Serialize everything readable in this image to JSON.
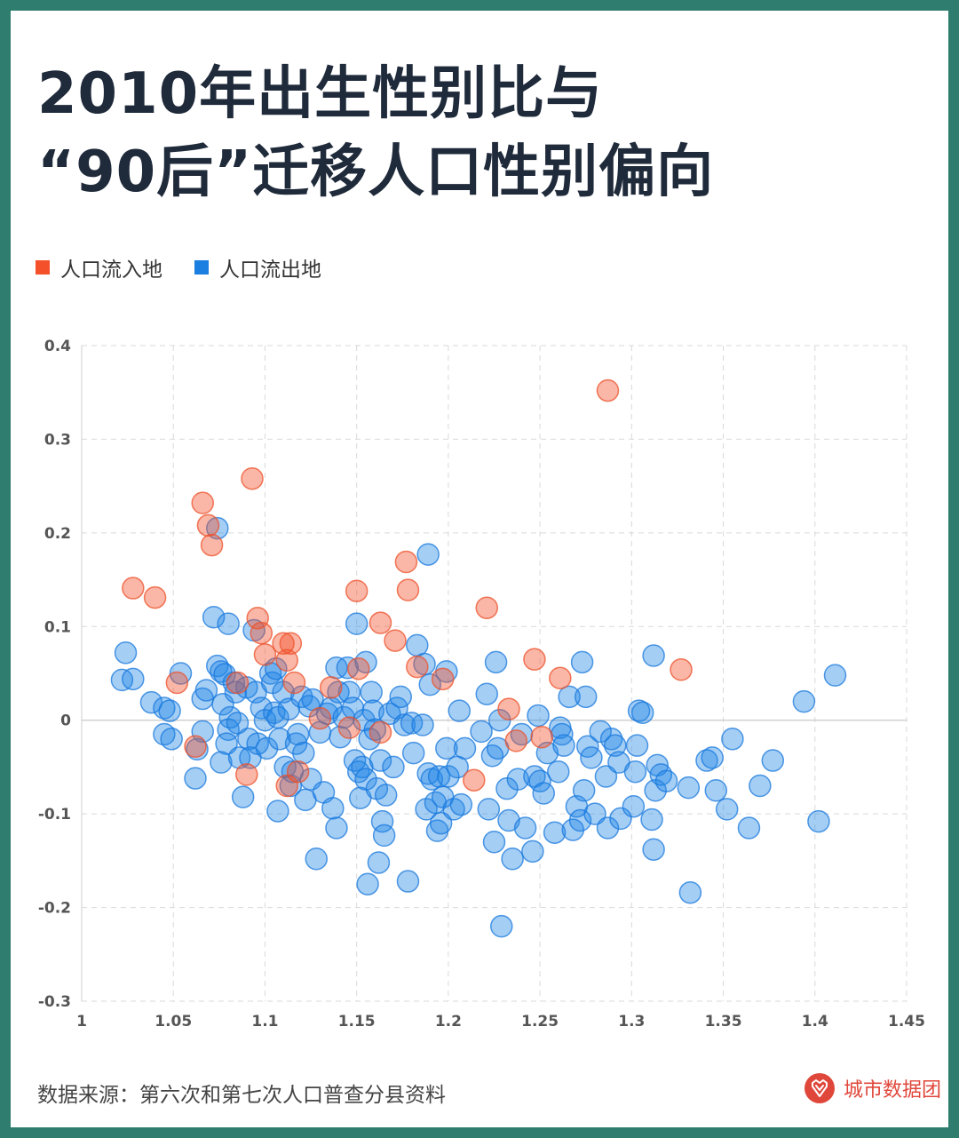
{
  "title": {
    "line1": "2010年出生性别比与",
    "line2": "“90后”迁移人口性别偏向"
  },
  "legend": {
    "inflow_label": "人口流入地",
    "outflow_label": "人口流出地"
  },
  "colors": {
    "inflow": "#f4502a",
    "outflow": "#1a7fe0",
    "frame": "#2f7d6e"
  },
  "footer": {
    "source": "数据来源：第六次和第七次人口普查分县资料",
    "brand": "城市数据团",
    "brand_icon": "city-data-logo-icon"
  },
  "chart_data": {
    "type": "scatter",
    "xlim": [
      1,
      1.45
    ],
    "ylim": [
      -0.3,
      0.4
    ],
    "x_ticks": [
      1,
      1.05,
      1.1,
      1.15,
      1.2,
      1.25,
      1.3,
      1.35,
      1.4,
      1.45
    ],
    "x_tick_labels": [
      "1",
      "1.05",
      "1.1",
      "1.15",
      "1.2",
      "1.25",
      "1.3",
      "1.35",
      "1.4",
      "1.45"
    ],
    "y_ticks": [
      0.4,
      0.3,
      0.2,
      0.1,
      0,
      -0.1,
      -0.2,
      -0.3
    ],
    "y_tick_labels": [
      "0.4",
      "0.3",
      "0.2",
      "0.1",
      "0",
      "-0.1",
      "-0.2",
      "-0.3"
    ],
    "grid": true,
    "legend_position": "top-left",
    "series": [
      {
        "name": "人口流入地",
        "color": "#f4502a",
        "points": [
          [
            1.028,
            0.141
          ],
          [
            1.04,
            0.131
          ],
          [
            1.052,
            0.04
          ],
          [
            1.066,
            0.232
          ],
          [
            1.069,
            0.208
          ],
          [
            1.071,
            0.187
          ],
          [
            1.093,
            0.258
          ],
          [
            1.096,
            0.109
          ],
          [
            1.098,
            0.093
          ],
          [
            1.1,
            0.07
          ],
          [
            1.11,
            0.082
          ],
          [
            1.112,
            0.064
          ],
          [
            1.114,
            0.082
          ],
          [
            1.116,
            0.04
          ],
          [
            1.118,
            -0.055
          ],
          [
            1.112,
            -0.07
          ],
          [
            1.09,
            -0.058
          ],
          [
            1.062,
            -0.028
          ],
          [
            1.15,
            0.138
          ],
          [
            1.151,
            0.055
          ],
          [
            1.163,
            0.104
          ],
          [
            1.171,
            0.085
          ],
          [
            1.177,
            0.169
          ],
          [
            1.178,
            0.139
          ],
          [
            1.183,
            0.057
          ],
          [
            1.197,
            0.044
          ],
          [
            1.221,
            0.12
          ],
          [
            1.233,
            0.012
          ],
          [
            1.237,
            -0.022
          ],
          [
            1.247,
            0.065
          ],
          [
            1.251,
            -0.018
          ],
          [
            1.261,
            0.045
          ],
          [
            1.287,
            0.352
          ],
          [
            1.327,
            0.054
          ],
          [
            1.214,
            -0.064
          ],
          [
            1.136,
            0.035
          ],
          [
            1.13,
            0.002
          ],
          [
            1.146,
            -0.008
          ],
          [
            1.163,
            -0.013
          ],
          [
            1.085,
            0.04
          ]
        ]
      },
      {
        "name": "人口流出地",
        "color": "#1a7fe0",
        "points": [
          [
            1.024,
            0.072
          ],
          [
            1.022,
            0.043
          ],
          [
            1.028,
            0.044
          ],
          [
            1.038,
            0.019
          ],
          [
            1.045,
            0.013
          ],
          [
            1.048,
            0.01
          ],
          [
            1.045,
            -0.015
          ],
          [
            1.049,
            -0.02
          ],
          [
            1.054,
            0.05
          ],
          [
            1.063,
            -0.031
          ],
          [
            1.062,
            -0.062
          ],
          [
            1.066,
            0.023
          ],
          [
            1.068,
            0.032
          ],
          [
            1.066,
            -0.012
          ],
          [
            1.072,
            0.11
          ],
          [
            1.074,
            0.058
          ],
          [
            1.074,
            0.205
          ],
          [
            1.076,
            0.052
          ],
          [
            1.078,
            0.049
          ],
          [
            1.077,
            0.017
          ],
          [
            1.08,
            0.103
          ],
          [
            1.081,
            0.003
          ],
          [
            1.08,
            -0.01
          ],
          [
            1.079,
            -0.025
          ],
          [
            1.076,
            -0.045
          ],
          [
            1.083,
            0.04
          ],
          [
            1.084,
            0.03
          ],
          [
            1.085,
            -0.003
          ],
          [
            1.086,
            -0.04
          ],
          [
            1.088,
            -0.082
          ],
          [
            1.09,
            0.035
          ],
          [
            1.091,
            -0.02
          ],
          [
            1.092,
            -0.04
          ],
          [
            1.094,
            0.096
          ],
          [
            1.095,
            0.03
          ],
          [
            1.096,
            -0.025
          ],
          [
            1.098,
            0.013
          ],
          [
            1.1,
            0.0
          ],
          [
            1.101,
            -0.03
          ],
          [
            1.103,
            0.05
          ],
          [
            1.104,
            0.04
          ],
          [
            1.105,
            0.008
          ],
          [
            1.106,
            0.055
          ],
          [
            1.107,
            0.003
          ],
          [
            1.107,
            -0.097
          ],
          [
            1.108,
            -0.02
          ],
          [
            1.11,
            0.03
          ],
          [
            1.111,
            -0.05
          ],
          [
            1.113,
            0.012
          ],
          [
            1.114,
            -0.07
          ],
          [
            1.115,
            -0.055
          ],
          [
            1.117,
            -0.025
          ],
          [
            1.118,
            -0.015
          ],
          [
            1.12,
            0.025
          ],
          [
            1.121,
            -0.035
          ],
          [
            1.122,
            -0.085
          ],
          [
            1.124,
            0.015
          ],
          [
            1.125,
            -0.063
          ],
          [
            1.126,
            0.022
          ],
          [
            1.128,
            -0.148
          ],
          [
            1.13,
            -0.013
          ],
          [
            1.132,
            -0.077
          ],
          [
            1.134,
            0.007
          ],
          [
            1.136,
            0.013
          ],
          [
            1.137,
            -0.094
          ],
          [
            1.139,
            0.056
          ],
          [
            1.139,
            -0.115
          ],
          [
            1.14,
            0.03
          ],
          [
            1.141,
            -0.018
          ],
          [
            1.143,
            0.003
          ],
          [
            1.145,
            0.056
          ],
          [
            1.146,
            0.03
          ],
          [
            1.148,
            0.013
          ],
          [
            1.149,
            -0.043
          ],
          [
            1.15,
            0.103
          ],
          [
            1.151,
            -0.055
          ],
          [
            1.152,
            -0.083
          ],
          [
            1.153,
            -0.05
          ],
          [
            1.154,
            0.0
          ],
          [
            1.155,
            -0.063
          ],
          [
            1.155,
            0.062
          ],
          [
            1.156,
            -0.175
          ],
          [
            1.157,
            -0.02
          ],
          [
            1.158,
            0.03
          ],
          [
            1.159,
            0.01
          ],
          [
            1.16,
            -0.01
          ],
          [
            1.161,
            -0.073
          ],
          [
            1.162,
            -0.152
          ],
          [
            1.163,
            -0.043
          ],
          [
            1.164,
            -0.108
          ],
          [
            1.165,
            -0.123
          ],
          [
            1.166,
            -0.08
          ],
          [
            1.168,
            0.007
          ],
          [
            1.17,
            -0.05
          ],
          [
            1.172,
            0.013
          ],
          [
            1.174,
            0.025
          ],
          [
            1.176,
            -0.005
          ],
          [
            1.178,
            -0.172
          ],
          [
            1.18,
            -0.003
          ],
          [
            1.181,
            -0.035
          ],
          [
            1.183,
            0.08
          ],
          [
            1.186,
            -0.005
          ],
          [
            1.187,
            0.06
          ],
          [
            1.188,
            -0.095
          ],
          [
            1.189,
            0.177
          ],
          [
            1.189,
            -0.057
          ],
          [
            1.19,
            0.038
          ],
          [
            1.191,
            -0.063
          ],
          [
            1.193,
            -0.088
          ],
          [
            1.194,
            -0.118
          ],
          [
            1.195,
            -0.06
          ],
          [
            1.196,
            -0.11
          ],
          [
            1.197,
            -0.082
          ],
          [
            1.199,
            -0.03
          ],
          [
            1.199,
            0.052
          ],
          [
            1.2,
            -0.06
          ],
          [
            1.203,
            -0.095
          ],
          [
            1.205,
            -0.05
          ],
          [
            1.206,
            0.01
          ],
          [
            1.207,
            -0.09
          ],
          [
            1.209,
            -0.03
          ],
          [
            1.218,
            -0.012
          ],
          [
            1.221,
            0.028
          ],
          [
            1.222,
            -0.095
          ],
          [
            1.224,
            -0.038
          ],
          [
            1.225,
            -0.13
          ],
          [
            1.226,
            0.062
          ],
          [
            1.227,
            -0.03
          ],
          [
            1.228,
            0.0
          ],
          [
            1.229,
            -0.22
          ],
          [
            1.232,
            -0.073
          ],
          [
            1.233,
            -0.107
          ],
          [
            1.235,
            -0.148
          ],
          [
            1.238,
            -0.063
          ],
          [
            1.24,
            -0.015
          ],
          [
            1.242,
            -0.115
          ],
          [
            1.246,
            -0.14
          ],
          [
            1.247,
            -0.06
          ],
          [
            1.249,
            0.005
          ],
          [
            1.25,
            -0.065
          ],
          [
            1.252,
            -0.078
          ],
          [
            1.254,
            -0.035
          ],
          [
            1.258,
            -0.12
          ],
          [
            1.26,
            -0.055
          ],
          [
            1.261,
            -0.008
          ],
          [
            1.262,
            -0.015
          ],
          [
            1.263,
            -0.027
          ],
          [
            1.266,
            0.025
          ],
          [
            1.268,
            -0.117
          ],
          [
            1.27,
            -0.092
          ],
          [
            1.272,
            -0.107
          ],
          [
            1.273,
            0.062
          ],
          [
            1.274,
            -0.075
          ],
          [
            1.275,
            0.025
          ],
          [
            1.276,
            -0.028
          ],
          [
            1.278,
            -0.04
          ],
          [
            1.28,
            -0.1
          ],
          [
            1.283,
            -0.012
          ],
          [
            1.286,
            -0.06
          ],
          [
            1.287,
            -0.115
          ],
          [
            1.289,
            -0.02
          ],
          [
            1.291,
            -0.027
          ],
          [
            1.293,
            -0.045
          ],
          [
            1.294,
            -0.105
          ],
          [
            1.301,
            -0.092
          ],
          [
            1.302,
            -0.055
          ],
          [
            1.303,
            -0.027
          ],
          [
            1.304,
            0.01
          ],
          [
            1.306,
            0.008
          ],
          [
            1.311,
            -0.106
          ],
          [
            1.312,
            -0.138
          ],
          [
            1.312,
            0.069
          ],
          [
            1.313,
            -0.075
          ],
          [
            1.314,
            -0.048
          ],
          [
            1.316,
            -0.058
          ],
          [
            1.319,
            -0.065
          ],
          [
            1.331,
            -0.072
          ],
          [
            1.332,
            -0.184
          ],
          [
            1.341,
            -0.043
          ],
          [
            1.344,
            -0.04
          ],
          [
            1.346,
            -0.075
          ],
          [
            1.352,
            -0.095
          ],
          [
            1.355,
            -0.02
          ],
          [
            1.364,
            -0.115
          ],
          [
            1.37,
            -0.07
          ],
          [
            1.377,
            -0.043
          ],
          [
            1.394,
            0.02
          ],
          [
            1.402,
            -0.108
          ],
          [
            1.411,
            0.048
          ]
        ]
      }
    ]
  }
}
